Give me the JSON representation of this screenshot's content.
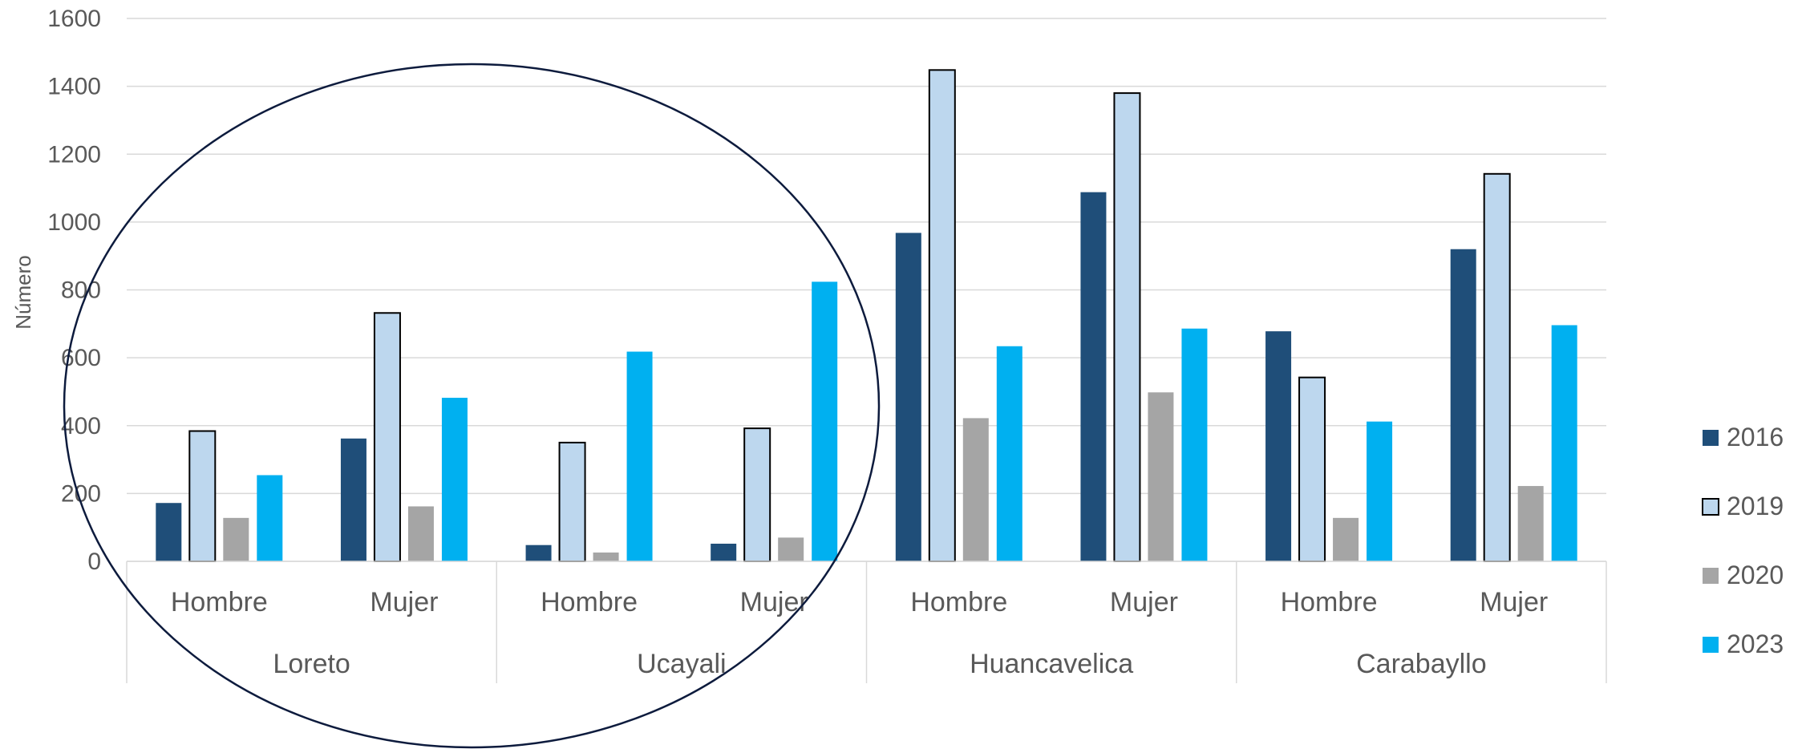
{
  "chart_data": {
    "type": "bar",
    "title": "",
    "ylabel": "Número",
    "xlabel": "",
    "ylim": [
      0,
      1600
    ],
    "yticks": [
      0,
      200,
      400,
      600,
      800,
      1000,
      1200,
      1400,
      1600
    ],
    "grid": true,
    "legend_position": "right",
    "groups": [
      "Loreto",
      "Ucayali",
      "Huancavelica",
      "Carabayllo"
    ],
    "subcategories": [
      "Hombre",
      "Mujer"
    ],
    "categories": [
      "Loreto Hombre",
      "Loreto Mujer",
      "Ucayali Hombre",
      "Ucayali Mujer",
      "Huancavelica Hombre",
      "Huancavelica Mujer",
      "Carabayllo Hombre",
      "Carabayllo Mujer"
    ],
    "series": [
      {
        "name": "2016",
        "color": "#1f4e79",
        "outline": false,
        "values": [
          172,
          362,
          48,
          52,
          968,
          1088,
          678,
          920
        ]
      },
      {
        "name": "2019",
        "color": "#bdd7ee",
        "outline": true,
        "values": [
          384,
          732,
          350,
          392,
          1448,
          1380,
          542,
          1142
        ]
      },
      {
        "name": "2020",
        "color": "#a5a5a5",
        "outline": false,
        "values": [
          128,
          162,
          26,
          70,
          422,
          498,
          128,
          222
        ]
      },
      {
        "name": "2023",
        "color": "#00b0f0",
        "outline": false,
        "values": [
          254,
          482,
          618,
          824,
          634,
          686,
          412,
          696
        ]
      }
    ],
    "annotations": [
      {
        "type": "ellipse",
        "encloses_groups": [
          "Loreto",
          "Ucayali"
        ],
        "color": "#0d1b3d"
      }
    ],
    "colors": {
      "axis_text": "#595959",
      "gridline": "#d9d9d9",
      "category_line": "#d9d9d9"
    }
  }
}
